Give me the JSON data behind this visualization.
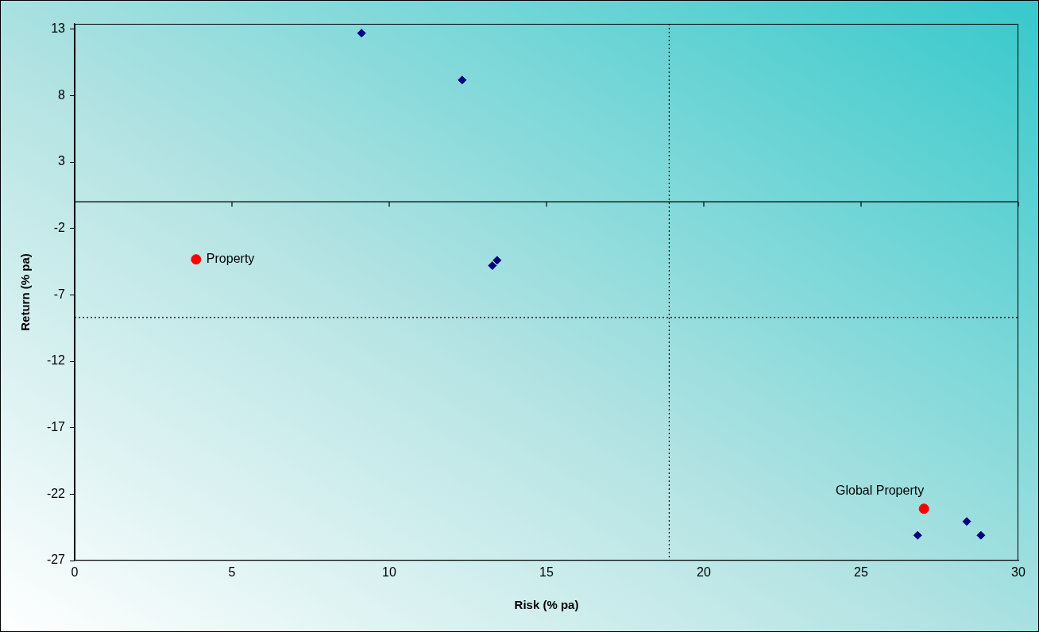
{
  "chart_data": {
    "type": "scatter",
    "xlabel": "Risk (% pa)",
    "ylabel": "Return (% pa)",
    "xlim": [
      0,
      30
    ],
    "xticks": [
      0,
      5,
      10,
      15,
      20,
      25,
      30
    ],
    "ylim": [
      -27,
      13.4
    ],
    "yticks": [
      -27,
      -22,
      -17,
      -12,
      -7,
      -2,
      3,
      8,
      13
    ],
    "grid": false,
    "legend": false,
    "series": [
      {
        "color": "#000080",
        "marker": "diamond",
        "x": [
          9.12,
          12.32,
          13.28,
          13.43,
          26.8,
          28.36,
          28.81
        ],
        "values": [
          12.7,
          9.17,
          -4.8,
          -4.4,
          -25.1,
          -24.06,
          -25.1
        ]
      },
      {
        "color": "#ff0000",
        "marker": "circle",
        "x": [
          3.86,
          27.0
        ],
        "values": [
          -4.33,
          -23.1
        ]
      }
    ],
    "ref_lines": [
      {
        "axis": "y",
        "value": 0,
        "line_style": "solid",
        "color": "#000000"
      },
      {
        "axis": "x",
        "value": 18.9,
        "line_style": "dotted",
        "color": "#000000"
      },
      {
        "axis": "y",
        "value": -8.7,
        "line_style": "dotted",
        "color": "#000000"
      }
    ],
    "annotations": [
      {
        "text": "Property",
        "x": 3.86,
        "y": -4.33
      },
      {
        "text": "Global Property",
        "x": 27.0,
        "y": -23.1
      }
    ]
  }
}
